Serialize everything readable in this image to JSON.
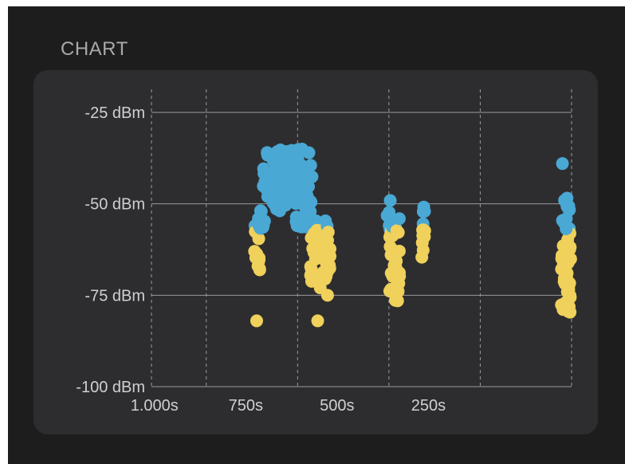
{
  "header": {
    "title": "CHART"
  },
  "chart_data": {
    "type": "scatter",
    "x_axis": {
      "reversed": true,
      "range": [
        1150,
        0
      ],
      "ticks": [
        1000,
        750,
        500,
        250
      ],
      "tick_labels": [
        "1.000s",
        "750s",
        "500s",
        "250s"
      ]
    },
    "y_axis": {
      "range": [
        -100,
        -20
      ],
      "ticks": [
        -25,
        -50,
        -75,
        -100
      ],
      "tick_labels": [
        "-25 dBm",
        "-50 dBm",
        "-75 dBm",
        "-100 dBm"
      ]
    },
    "grid": {
      "horizontal": true,
      "vertical": "dashed"
    },
    "colors": {
      "strong": "#4aa8d4",
      "weak": "#efd15b",
      "background": "#2d2d2f"
    },
    "threshold_dbm": -57,
    "series": [
      {
        "x_range": [
          870,
          850
        ],
        "y_range": [
          -71,
          -54
        ]
      },
      {
        "x_range": [
          860,
          840
        ],
        "y_range": [
          -58,
          -51
        ]
      },
      {
        "x": 862,
        "y": -82
      },
      {
        "x_range": [
          845,
          710
        ],
        "y_range": [
          -50,
          -35
        ]
      },
      {
        "x_range": [
          820,
          755
        ],
        "y_range": [
          -52,
          -38
        ]
      },
      {
        "x_range": [
          758,
          715
        ],
        "y_range": [
          -57,
          -45
        ]
      },
      {
        "x_range": [
          715,
          670
        ],
        "y_range": [
          -72,
          -54
        ]
      },
      {
        "x_range": [
          690,
          660
        ],
        "y_range": [
          -70,
          -55
        ]
      },
      {
        "x": 695,
        "y": -82
      },
      {
        "x": 668,
        "y": -75
      },
      {
        "x": 688,
        "y": -73
      },
      {
        "x_range": [
          505,
          490
        ],
        "y_range": [
          -57,
          -47
        ]
      },
      {
        "x_range": [
          500,
          468
        ],
        "y_range": [
          -77,
          -54
        ]
      },
      {
        "x_range": [
          410,
          402
        ],
        "y_range": [
          -60,
          -49
        ]
      },
      {
        "x_range": [
          410,
          402
        ],
        "y_range": [
          -68,
          -57
        ]
      },
      {
        "x": 25,
        "y": -39
      },
      {
        "x_range": [
          30,
          5
        ],
        "y_range": [
          -58,
          -48
        ]
      },
      {
        "x_range": [
          30,
          2
        ],
        "y_range": [
          -81,
          -56
        ]
      }
    ]
  }
}
